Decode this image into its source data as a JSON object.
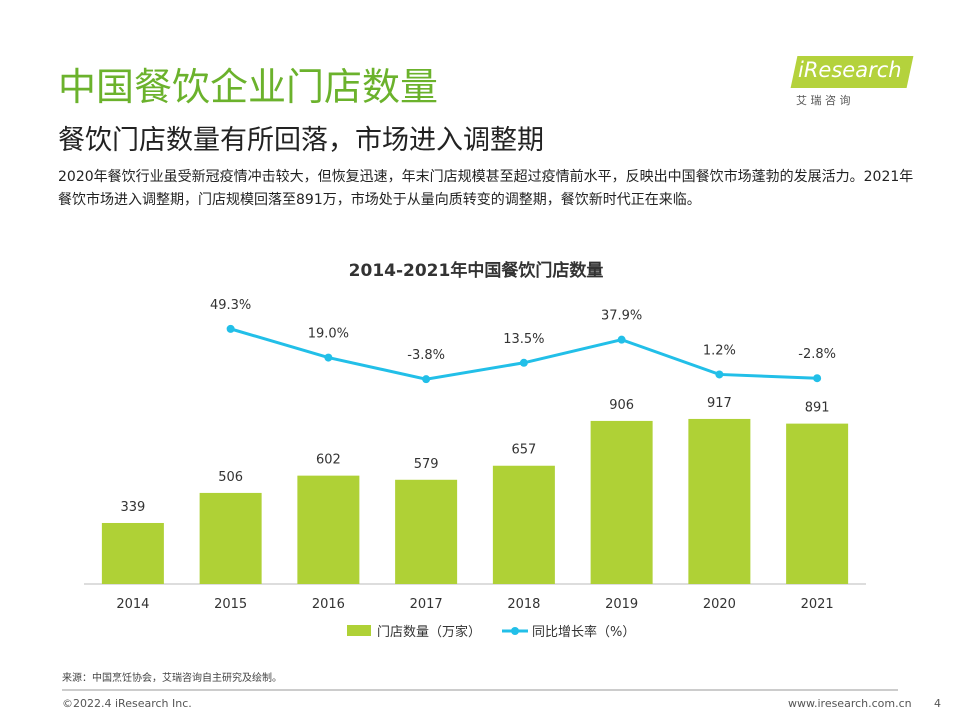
{
  "header": {
    "title": "中国餐饮企业门店数量",
    "subtitle": "餐饮门店数量有所回落，市场进入调整期",
    "text": "2020年餐饮行业虽受新冠疫情冲击较大，但恢复迅速，年末门店规模甚至超过疫情前水平，反映出中国餐饮市场蓬勃的发展活力。2021年餐饮市场进入调整期，门店规模回落至891万，市场处于从量向质转变的调整期，餐饮新时代正在来临。"
  },
  "logo": {
    "name": "iResearch",
    "sub": "艾 瑞 咨 询"
  },
  "chart_data": {
    "type": "bar",
    "title": "2014-2021年中国餐饮门店数量",
    "categories": [
      "2014",
      "2015",
      "2016",
      "2017",
      "2018",
      "2019",
      "2020",
      "2021"
    ],
    "ylim": [
      0,
      2000
    ],
    "y2lim": [
      -220,
      160
    ],
    "series": [
      {
        "name": "门店数量（万家）",
        "type": "bar",
        "color": "#afd136",
        "values": [
          339,
          506,
          602,
          579,
          657,
          906,
          917,
          891
        ]
      },
      {
        "name": "同比增长率（%）",
        "type": "line",
        "axis": "y2",
        "color": "#22bfe8",
        "values": [
          null,
          49.3,
          19.0,
          -3.8,
          13.5,
          37.9,
          1.2,
          -2.8
        ],
        "value_labels": [
          null,
          "49.3%",
          "19.0%",
          "-3.8%",
          "13.5%",
          "37.9%",
          "1.2%",
          "-2.8%"
        ]
      }
    ]
  },
  "footer": {
    "source": "来源：中国烹饪协会，艾瑞咨询自主研究及绘制。",
    "copyright": "©2022.4 iResearch Inc.",
    "url": "www.iresearch.com.cn",
    "page": "4"
  }
}
